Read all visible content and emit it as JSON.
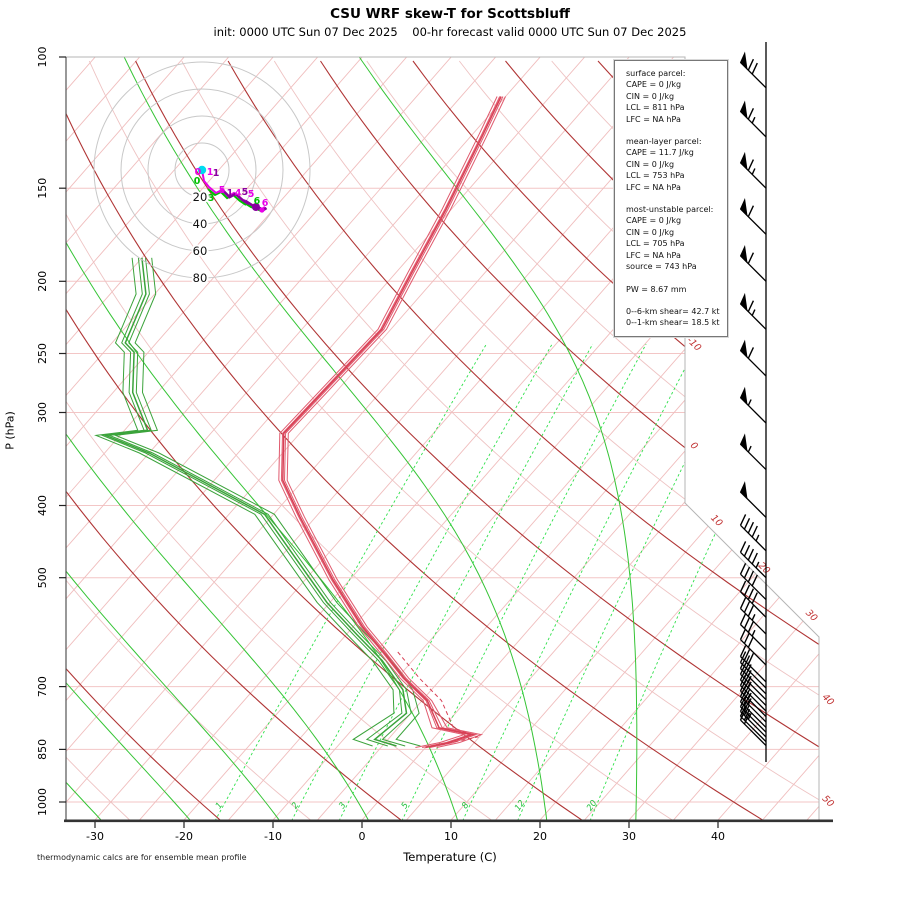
{
  "header": {
    "title": "CSU WRF skew-T for Scottsbluff",
    "subtitle": "init: 0000 UTC Sun 07 Dec 2025    00-hr forecast valid 0000 UTC Sun 07 Dec 2025"
  },
  "footer_note": "thermodynamic calcs are for ensemble mean profile",
  "axes": {
    "xlabel": "Temperature (C)",
    "ylabel": "P (hPa)",
    "x_ticks": [
      -30,
      -20,
      -10,
      0,
      10,
      20,
      30,
      40
    ],
    "p_ticks": [
      100,
      150,
      200,
      250,
      300,
      400,
      500,
      700,
      850,
      1000
    ]
  },
  "info_box": {
    "sections": [
      {
        "title": "surface parcel:",
        "lines": [
          "CAPE = 0 J/kg",
          "CIN = 0 J/kg",
          "LCL = 811 hPa",
          "LFC = NA hPa"
        ]
      },
      {
        "title": "mean-layer parcel:",
        "lines": [
          "CAPE = 11.7 J/kg",
          "CIN = 0 J/kg",
          "LCL = 753 hPa",
          "LFC = NA hPa"
        ]
      },
      {
        "title": "most-unstable parcel:",
        "lines": [
          "CAPE = 0 J/kg",
          "CIN = 0 J/kg",
          "LCL = 705 hPa",
          "LFC = NA hPa",
          "source = 743 hPa"
        ]
      }
    ],
    "pw_line": "PW =  8.67 mm",
    "shear_lines": [
      "0--6-km shear= 42.7 kt",
      "0--1-km shear= 18.5 kt"
    ]
  },
  "chart_data": {
    "type": "skewt-log-p",
    "pressure_range_hpa": [
      100,
      1057
    ],
    "temperature_axis_range_c": [
      -35,
      45
    ],
    "isobars_hpa": [
      150,
      200,
      250,
      300,
      400,
      500,
      700,
      850,
      1000
    ],
    "isotherm_step_c": 5,
    "isotherm_edge_labels_c": [
      -30,
      -20,
      -10,
      0,
      10,
      20,
      30,
      40,
      50
    ],
    "dry_adiabats_theta_c": {
      "min": -40,
      "max": 190,
      "step": 10,
      "dark_every_c": 20
    },
    "moist_adiabats_thetaw_c": [
      -40,
      -30,
      -20,
      -10,
      0,
      10,
      20,
      30
    ],
    "mixing_ratio_lines_gkg": [
      1,
      2,
      3,
      5,
      8,
      12,
      20
    ],
    "temperature_profile_p_t": [
      [
        113,
        -55.5
      ],
      [
        127,
        -53.8
      ],
      [
        160,
        -50.6
      ],
      [
        195,
        -48.2
      ],
      [
        232,
        -46.0
      ],
      [
        320,
        -46.8
      ],
      [
        370,
        -42.3
      ],
      [
        414,
        -36.8
      ],
      [
        503,
        -26.9
      ],
      [
        582,
        -18.9
      ],
      [
        629,
        -14.1
      ],
      [
        682,
        -9.2
      ],
      [
        731,
        -4.4
      ],
      [
        795,
        -0.4
      ],
      [
        812,
        4.0
      ],
      [
        832,
        2.2
      ],
      [
        845,
        0.0
      ]
    ],
    "dewpoint_profile_p_t": [
      [
        186,
        -80.0
      ],
      [
        208,
        -76.0
      ],
      [
        242,
        -73.5
      ],
      [
        249,
        -71.6
      ],
      [
        282,
        -67.8
      ],
      [
        317,
        -62.4
      ],
      [
        322,
        -66.6
      ],
      [
        340,
        -60.0
      ],
      [
        411,
        -41.0
      ],
      [
        540,
        -25.3
      ],
      [
        596,
        -18.8
      ],
      [
        646,
        -13.4
      ],
      [
        707,
        -8.2
      ],
      [
        760,
        -5.5
      ],
      [
        824,
        -6.5
      ],
      [
        841,
        -3.4
      ]
    ],
    "parcel_dashed_p_t": [
      [
        629,
        -12.5
      ],
      [
        682,
        -7.5
      ],
      [
        731,
        -2.8
      ],
      [
        795,
        1.2
      ],
      [
        818,
        4.8
      ],
      [
        838,
        1.5
      ]
    ],
    "ensemble_t_offsets_c": [
      -0.45,
      -0.15,
      0.2,
      0.5
    ],
    "ensemble_td_offsets_c": [
      -1.1,
      -0.4,
      0.4,
      1.1
    ],
    "wind_barbs_p_kt": [
      [
        110,
        70
      ],
      [
        128,
        65
      ],
      [
        150,
        65
      ],
      [
        173,
        60
      ],
      [
        200,
        60
      ],
      [
        232,
        65
      ],
      [
        268,
        60
      ],
      [
        310,
        55
      ],
      [
        358,
        55
      ],
      [
        415,
        50
      ],
      [
        460,
        45
      ],
      [
        500,
        45
      ],
      [
        535,
        40
      ],
      [
        565,
        40
      ],
      [
        595,
        35
      ],
      [
        625,
        35
      ],
      [
        655,
        30
      ],
      [
        690,
        30
      ],
      [
        703,
        25
      ],
      [
        716,
        25
      ],
      [
        729,
        25
      ],
      [
        742,
        25
      ],
      [
        755,
        20
      ],
      [
        768,
        25
      ],
      [
        781,
        25
      ],
      [
        794,
        20
      ],
      [
        806,
        20
      ],
      [
        818,
        25
      ],
      [
        830,
        20
      ],
      [
        840,
        20
      ]
    ],
    "hodograph": {
      "ring_labels_kt": [
        20,
        40,
        60,
        80
      ],
      "trace_uv_kt": [
        [
          0,
          0
        ],
        [
          1.5,
          -8.1
        ],
        [
          5.2,
          -12.6
        ],
        [
          10.4,
          -17.0
        ],
        [
          14.8,
          -14.8
        ],
        [
          19.3,
          -19.3
        ],
        [
          23.7,
          -17.0
        ],
        [
          28.9,
          -21.5
        ],
        [
          33.3,
          -24.4
        ],
        [
          31.1,
          -22.2
        ],
        [
          37.0,
          -25.9
        ],
        [
          41.5,
          -27.4
        ],
        [
          44.4,
          -28.9
        ],
        [
          46.7,
          -27.4
        ]
      ],
      "height_labels_km": [
        {
          "t": "0",
          "u": -3.0,
          "v": -3.7,
          "c": "magenta"
        },
        {
          "t": "0",
          "u": -3.7,
          "v": -10.4,
          "c": "green"
        },
        {
          "t": "1",
          "u": 5.9,
          "v": -3.7,
          "c": "magenta"
        },
        {
          "t": "1",
          "u": 10.4,
          "v": -4.4,
          "c": "purple"
        },
        {
          "t": "3",
          "u": 6.7,
          "v": -23.0,
          "c": "green"
        },
        {
          "t": "5",
          "u": 14.8,
          "v": -17.0,
          "c": "magenta"
        },
        {
          "t": "1",
          "u": 20.7,
          "v": -19.3,
          "c": "purple"
        },
        {
          "t": "4",
          "u": 26.7,
          "v": -19.3,
          "c": "magenta"
        },
        {
          "t": "5",
          "u": 31.8,
          "v": -18.5,
          "c": "purple"
        },
        {
          "t": "5",
          "u": 36.3,
          "v": -20.0,
          "c": "magenta"
        },
        {
          "t": "6",
          "u": 40.7,
          "v": -25.2,
          "c": "green"
        },
        {
          "t": "6",
          "u": 46.7,
          "v": -26.7,
          "c": "magenta"
        }
      ]
    },
    "colors": {
      "isobar": "#f3c6c6",
      "isotherm": "#f0bdbd",
      "dry_adiabat_dark": "#b03535",
      "dry_adiabat_pale": "#eec3c3",
      "moist_adiabat": "#35c435",
      "mixing_ratio": "#2ee04a",
      "mixing_label": "#22c03c",
      "isotherm_label": "#c03030",
      "temperature_trace": "#e05a6e",
      "temperature_mean": "#d84055",
      "dewpoint_trace": "#3ba33b",
      "boundary": "#b5b5b5",
      "axis": "#333333",
      "barb": "#000000",
      "hodo_ring": "#c8c8c8",
      "hodo_magenta": "#e800e8",
      "hodo_purple": "#8a00a0",
      "hodo_green": "#00c000",
      "hodo_origin_dot": "#00dcf0"
    }
  }
}
